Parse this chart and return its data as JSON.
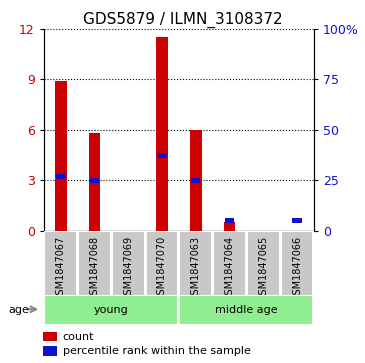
{
  "title": "GDS5879 / ILMN_3108372",
  "samples": [
    "GSM1847067",
    "GSM1847068",
    "GSM1847069",
    "GSM1847070",
    "GSM1847063",
    "GSM1847064",
    "GSM1847065",
    "GSM1847066"
  ],
  "counts": [
    8.9,
    5.8,
    0.0,
    11.5,
    6.0,
    0.5,
    0.0,
    0.0
  ],
  "percentiles": [
    27,
    25,
    0,
    37,
    25,
    5,
    0,
    5
  ],
  "count_color": "#cc0000",
  "percentile_color": "#1111cc",
  "left_ylim": [
    0,
    12
  ],
  "right_ylim": [
    0,
    100
  ],
  "left_yticks": [
    0,
    3,
    6,
    9,
    12
  ],
  "right_yticks": [
    0,
    25,
    50,
    75,
    100
  ],
  "right_yticklabels": [
    "0",
    "25",
    "50",
    "75",
    "100%"
  ],
  "age_label": "age",
  "legend_count": "count",
  "legend_percentile": "percentile rank within the sample",
  "bar_width": 0.35,
  "background_color": "#ffffff",
  "sample_box_color": "#c8c8c8",
  "group_box_color": "#90ee90",
  "groups_info": [
    {
      "label": "young",
      "start": 0,
      "end": 3
    },
    {
      "label": "middle age",
      "start": 4,
      "end": 7
    }
  ]
}
